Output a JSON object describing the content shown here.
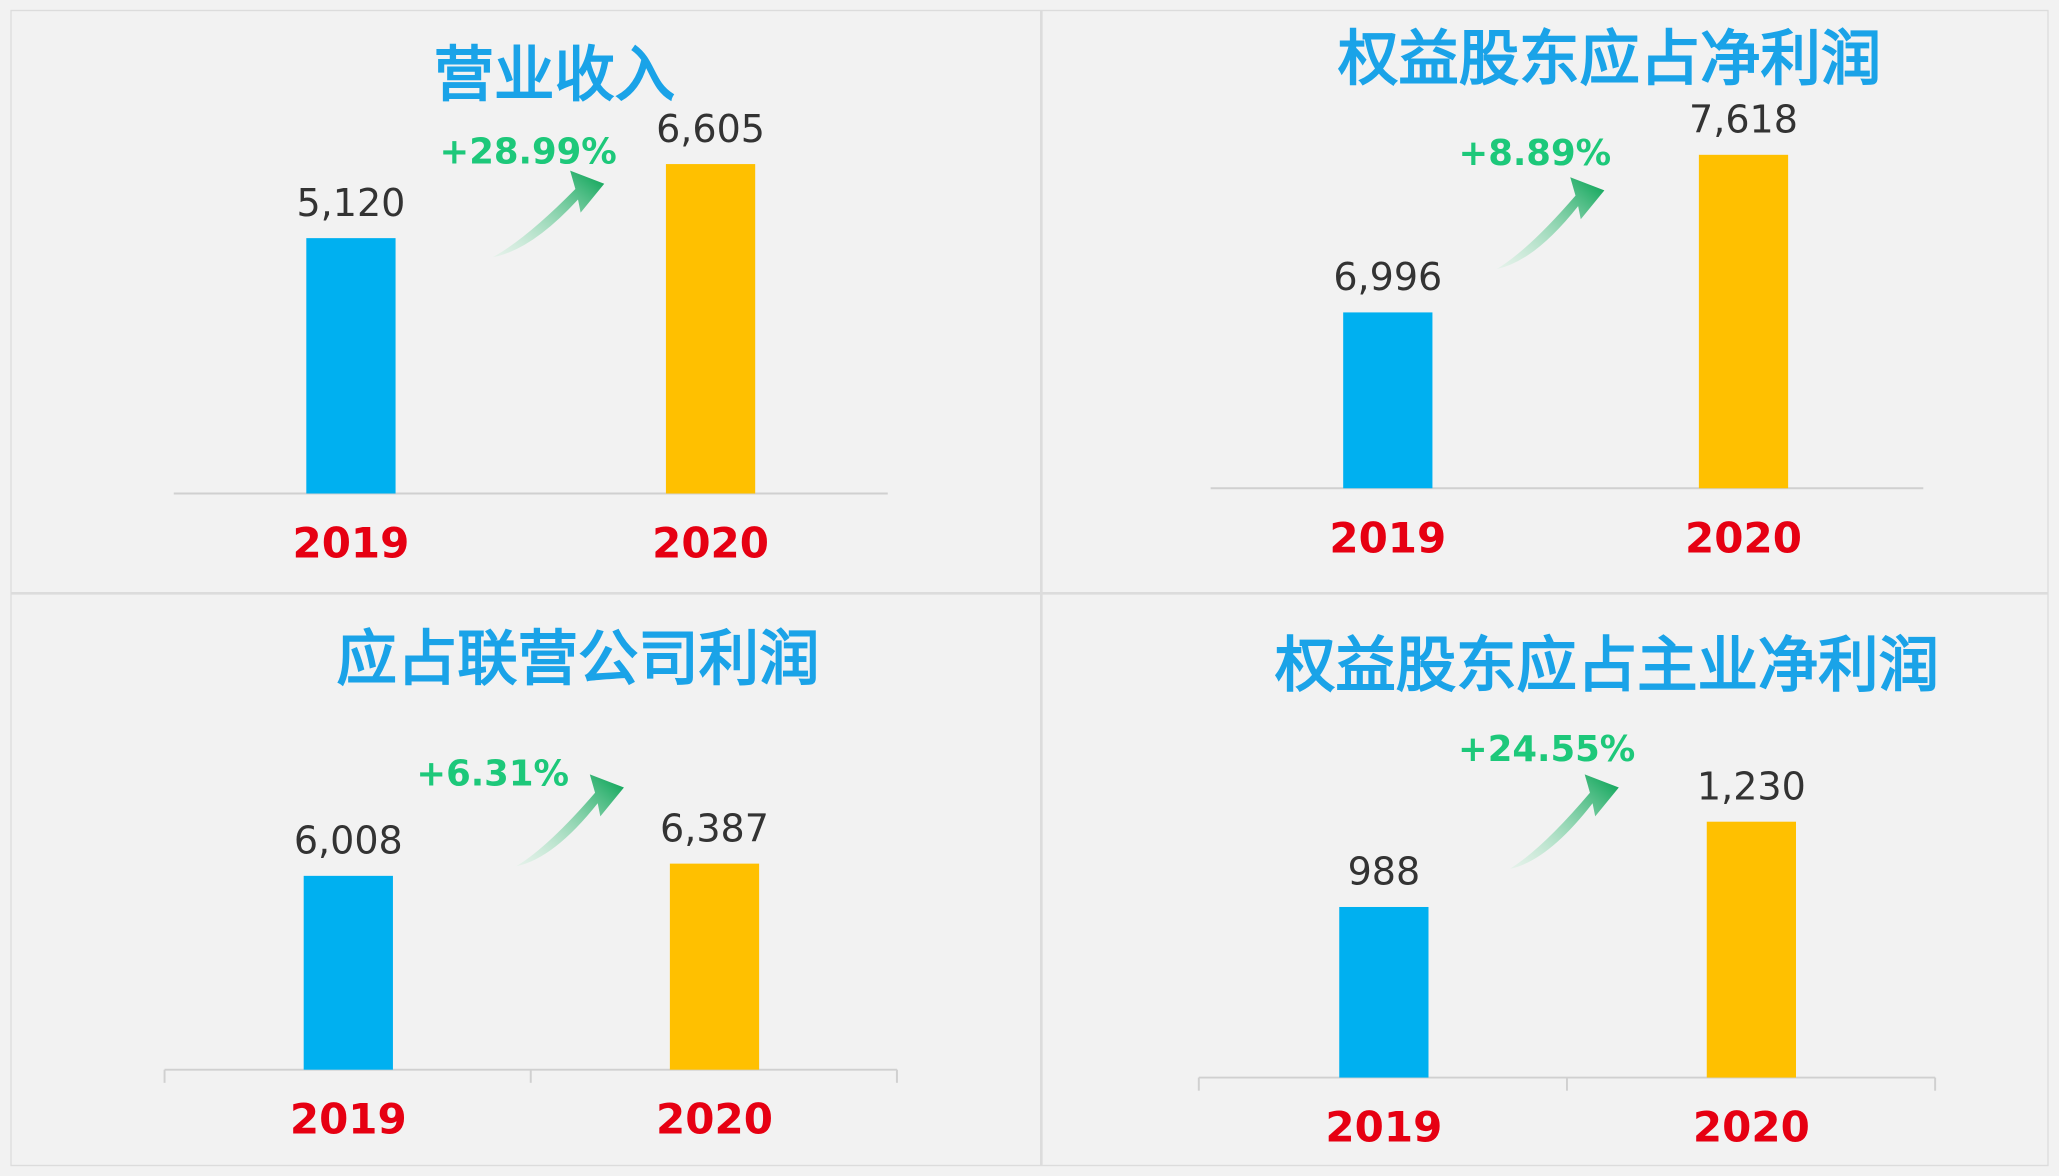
{
  "chart_data": [
    {
      "type": "bar",
      "title": "营业收入",
      "categories": [
        "2019",
        "2020"
      ],
      "values": [
        5120,
        6605
      ],
      "value_labels": [
        "5,120",
        "6,605"
      ],
      "colors": [
        "#00b0f0",
        "#ffc000"
      ],
      "annotation": "+28.99%",
      "ylim": [
        0,
        7263
      ]
    },
    {
      "type": "bar",
      "title": "权益股东应占净利润",
      "categories": [
        "2019",
        "2020"
      ],
      "values": [
        6996,
        7618
      ],
      "value_labels": [
        "6,996",
        "7,618"
      ],
      "colors": [
        "#00b0f0",
        "#ffc000"
      ],
      "annotation": "+8.89%",
      "ylim": [
        6302,
        7711
      ]
    },
    {
      "type": "bar",
      "title": "应占联营公司利润",
      "categories": [
        "2019",
        "2020"
      ],
      "values": [
        6008,
        6387
      ],
      "value_labels": [
        "6,008",
        "6,387"
      ],
      "colors": [
        "#00b0f0",
        "#ffc000"
      ],
      "annotation": "+6.31%",
      "ylim": [
        0,
        10374
      ]
    },
    {
      "type": "bar",
      "title": "权益股东应占主业净利润",
      "categories": [
        "2019",
        "2020"
      ],
      "values": [
        988,
        1230
      ],
      "value_labels": [
        "988",
        "1,230"
      ],
      "colors": [
        "#00b0f0",
        "#ffc000"
      ],
      "annotation": "+24.55%",
      "ylim": [
        504,
        1476
      ]
    }
  ]
}
